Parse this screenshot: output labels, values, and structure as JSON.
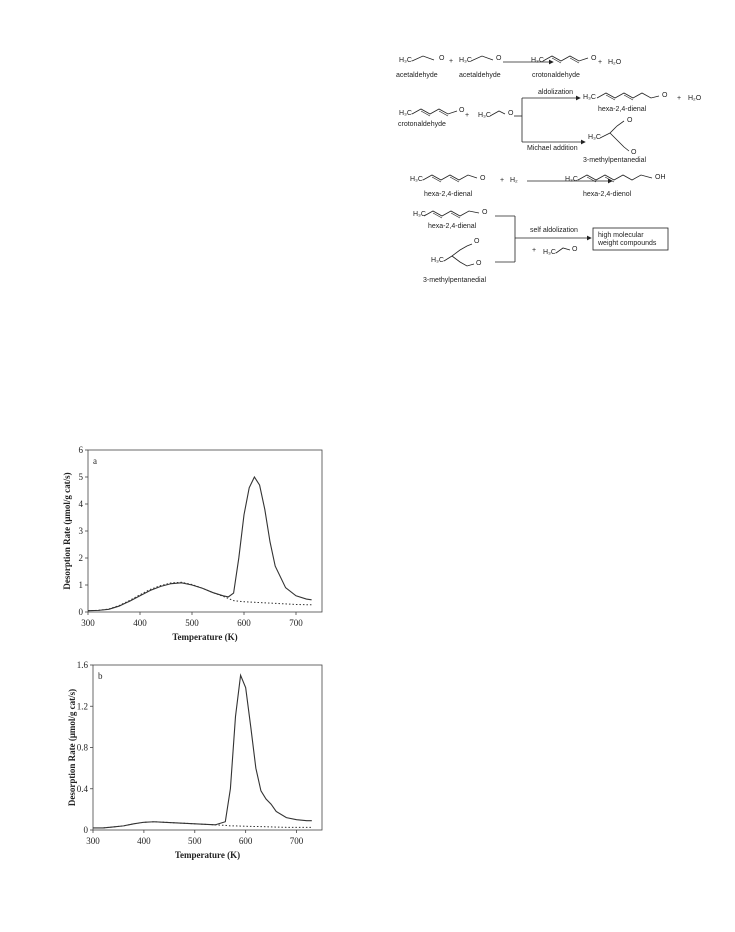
{
  "scheme": {
    "texts": [
      "H₃C",
      "O",
      "+",
      "H₃C",
      "O",
      "H₃C",
      "O",
      "+",
      "H₂O",
      "acetaldehyde",
      "acetaldehyde",
      "crotonaldehyde",
      "H₃C",
      "O",
      "+",
      "H₃C",
      "O",
      "aldolization",
      "H₃C",
      "O",
      "+",
      "H₂O",
      "hexa-2,4-dienal",
      "Michael addition",
      "H₃C",
      "O",
      "O",
      "3-methylpentanedial",
      "crotonaldehyde",
      "H₃C",
      "O",
      "+",
      "H₂",
      "H₃C",
      "OH",
      "hexa-2,4-dienal",
      "hexa-2,4-dienol",
      "H₃C",
      "O",
      "hexa-2,4-dienal",
      "self aldolization",
      "high molecular",
      "weight compounds",
      "+",
      "H₃C",
      "O",
      "H₃C",
      "O",
      "O",
      "3-methylpentanedial"
    ]
  },
  "chart_data": [
    {
      "type": "line",
      "label": "a",
      "xlabel": "Temperature (K)",
      "ylabel": "Desorption Rate (μmol/g cat/s)",
      "xlim": [
        300,
        750
      ],
      "ylim": [
        0,
        6
      ],
      "xticks": [
        300,
        400,
        500,
        600,
        700
      ],
      "yticks": [
        0,
        1,
        2,
        3,
        4,
        5,
        6
      ],
      "x": [
        300,
        320,
        340,
        360,
        380,
        400,
        420,
        440,
        460,
        480,
        500,
        520,
        540,
        560,
        570,
        580,
        590,
        600,
        610,
        620,
        630,
        640,
        650,
        660,
        680,
        700,
        720,
        730
      ],
      "series": [
        {
          "color": "#333333",
          "style": "solid",
          "values": [
            0.05,
            0.06,
            0.1,
            0.22,
            0.4,
            0.6,
            0.8,
            0.95,
            1.05,
            1.08,
            1.0,
            0.88,
            0.72,
            0.6,
            0.56,
            0.7,
            2.0,
            3.6,
            4.6,
            5.0,
            4.7,
            3.8,
            2.6,
            1.7,
            0.9,
            0.6,
            0.48,
            0.45
          ]
        },
        {
          "color": "#333333",
          "style": "dotted",
          "values": [
            0.05,
            0.06,
            0.11,
            0.24,
            0.43,
            0.64,
            0.84,
            0.98,
            1.08,
            1.1,
            1.02,
            0.88,
            0.72,
            0.58,
            0.5,
            0.42,
            0.4,
            0.38,
            0.37,
            0.36,
            0.35,
            0.34,
            0.33,
            0.32,
            0.3,
            0.28,
            0.27,
            0.27
          ]
        }
      ]
    },
    {
      "type": "line",
      "label": "b",
      "xlabel": "Temperature (K)",
      "ylabel": "Desorption Rate (μmol/g cat/s)",
      "xlim": [
        300,
        750
      ],
      "ylim": [
        0,
        1.6
      ],
      "xticks": [
        300,
        400,
        500,
        600,
        700
      ],
      "yticks": [
        0,
        0.4,
        0.8,
        1.2,
        1.6
      ],
      "x": [
        300,
        320,
        340,
        360,
        380,
        400,
        420,
        440,
        460,
        480,
        500,
        520,
        540,
        560,
        570,
        580,
        590,
        600,
        610,
        620,
        630,
        640,
        650,
        660,
        680,
        700,
        720,
        730
      ],
      "series": [
        {
          "color": "#333333",
          "style": "solid",
          "values": [
            0.02,
            0.02,
            0.03,
            0.04,
            0.06,
            0.075,
            0.08,
            0.075,
            0.07,
            0.065,
            0.06,
            0.055,
            0.05,
            0.08,
            0.4,
            1.1,
            1.5,
            1.38,
            1.0,
            0.6,
            0.38,
            0.3,
            0.25,
            0.18,
            0.12,
            0.1,
            0.09,
            0.09
          ]
        },
        {
          "color": "#333333",
          "style": "dotted",
          "values": [
            0.02,
            0.02,
            0.03,
            0.04,
            0.06,
            0.075,
            0.08,
            0.075,
            0.07,
            0.065,
            0.06,
            0.055,
            0.05,
            0.045,
            0.04,
            0.04,
            0.038,
            0.036,
            0.035,
            0.034,
            0.033,
            0.032,
            0.03,
            0.028,
            0.026,
            0.025,
            0.025,
            0.025
          ]
        }
      ]
    }
  ]
}
